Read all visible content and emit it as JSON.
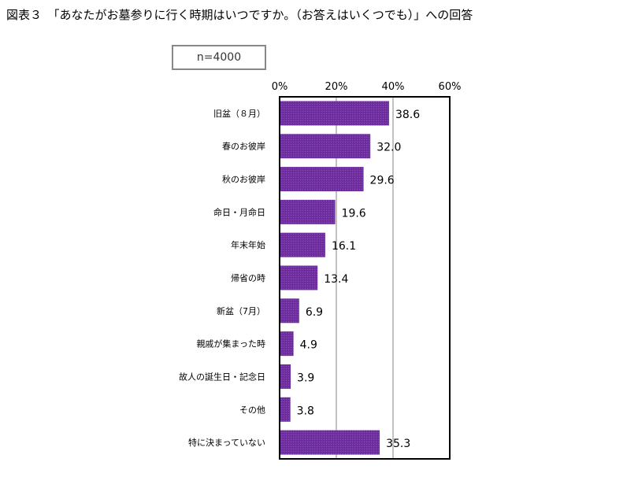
{
  "title": "図表３　「あなたがお墓参りに行く時期はいつですか。（お答えはいくつでも）」への回答",
  "sample": "n=4000",
  "chart_data": {
    "type": "bar",
    "orientation": "horizontal",
    "title": "図表３　「あなたがお墓参りに行く時期はいつですか。（お答えはいくつでも）」への回答",
    "xlim": [
      0,
      60
    ],
    "ticks": [
      0,
      20,
      40,
      60
    ],
    "tick_labels": [
      "0%",
      "20%",
      "40%",
      "60%"
    ],
    "categories": [
      "旧盆（８月）",
      "春のお彼岸",
      "秋のお彼岸",
      "命日・月命日",
      "年末年始",
      "帰省の時",
      "新盆（7月）",
      "親戚が集まった時",
      "故人の誕生日・記念日",
      "その他",
      "特に決まっていない"
    ],
    "values": [
      38.6,
      32.0,
      29.6,
      19.6,
      16.1,
      13.4,
      6.9,
      4.9,
      3.9,
      3.8,
      35.3
    ],
    "value_labels": [
      "38.6",
      "32.0",
      "29.6",
      "19.6",
      "16.1",
      "13.4",
      "6.9",
      "4.9",
      "3.9",
      "3.8",
      "35.3"
    ],
    "bar_color": "#7030a0",
    "grid": true
  }
}
